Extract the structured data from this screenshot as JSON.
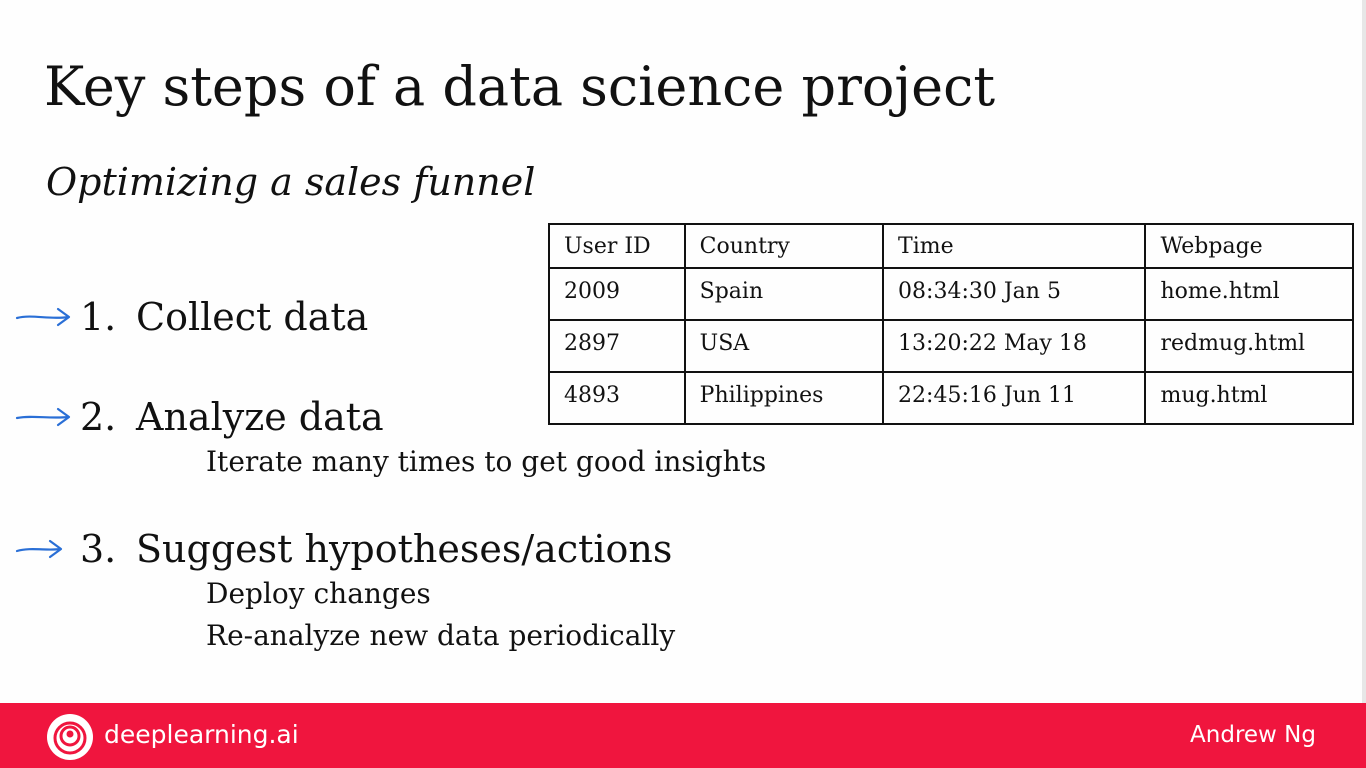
{
  "slide": {
    "title": "Key steps of a data science project",
    "subtitle": "Optimizing a sales funnel"
  },
  "steps": [
    {
      "number": "1.",
      "label": "Collect data",
      "sub": []
    },
    {
      "number": "2.",
      "label": "Analyze data",
      "sub": [
        "Iterate many times to get good insights"
      ]
    },
    {
      "number": "3.",
      "label": "Suggest hypotheses/actions",
      "sub": [
        "Deploy changes",
        "Re-analyze new data periodically"
      ]
    }
  ],
  "table": {
    "headers": [
      "User ID",
      "Country",
      "Time",
      "Webpage"
    ],
    "rows": [
      [
        "2009",
        "Spain",
        "08:34:30 Jan 5",
        "home.html"
      ],
      [
        "2897",
        "USA",
        "13:20:22 May 18",
        "redmug.html"
      ],
      [
        "4893",
        "Philippines",
        "22:45:16 Jun 11",
        "mug.html"
      ]
    ]
  },
  "footer": {
    "brand": "deeplearning.ai",
    "author": "Andrew Ng",
    "background_color": "#f0153e",
    "logo_icon": "deeplearning-logo-icon"
  },
  "colors": {
    "arrow": "#2a6fd6",
    "text": "#111111"
  }
}
